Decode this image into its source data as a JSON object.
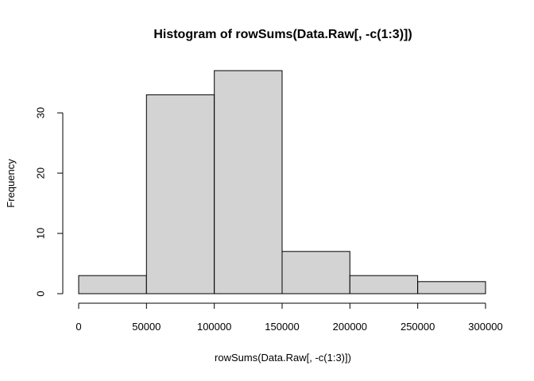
{
  "chart_data": {
    "type": "bar",
    "title": "Histogram of rowSums(Data.Raw[, -c(1:3)])",
    "xlabel": "rowSums(Data.Raw[, -c(1:3)])",
    "ylabel": "Frequency",
    "bins": [
      {
        "start": 0,
        "end": 50000,
        "count": 3
      },
      {
        "start": 50000,
        "end": 100000,
        "count": 33
      },
      {
        "start": 100000,
        "end": 150000,
        "count": 37
      },
      {
        "start": 150000,
        "end": 200000,
        "count": 7
      },
      {
        "start": 200000,
        "end": 250000,
        "count": 3
      },
      {
        "start": 250000,
        "end": 300000,
        "count": 2
      }
    ],
    "xlim": [
      0,
      300000
    ],
    "ylim": [
      0,
      37
    ],
    "xticks": [
      0,
      50000,
      100000,
      150000,
      200000,
      250000,
      300000
    ],
    "xtick_labels": [
      "0",
      "50000",
      "100000",
      "150000",
      "200000",
      "250000",
      "300000"
    ],
    "yticks": [
      0,
      10,
      20,
      30
    ],
    "ytick_labels": [
      "0",
      "10",
      "20",
      "30"
    ],
    "bar_fill": "#d3d3d3",
    "bar_stroke": "#000000",
    "grid": false,
    "legend": "none"
  }
}
